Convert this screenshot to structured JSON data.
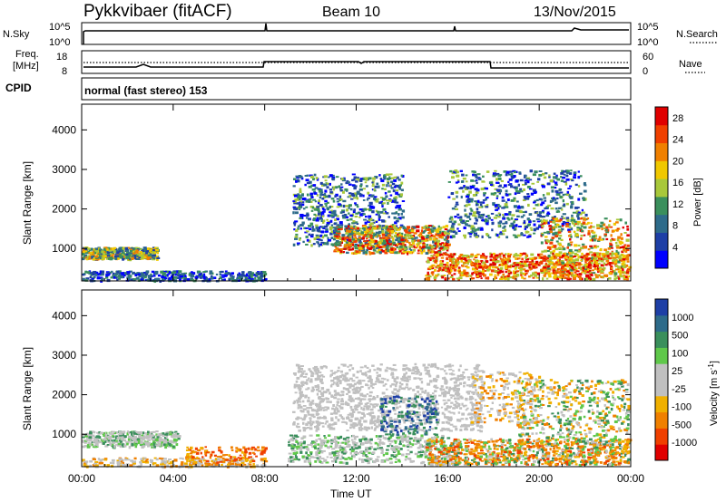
{
  "header": {
    "station": "Pykkvibaer (fitACF)",
    "beam": "Beam 10",
    "date": "13/Nov/2015"
  },
  "sky_panel": {
    "left_label": "N.Sky",
    "left_ticks": [
      "10^5",
      "10^0"
    ],
    "right_label": "N.Search",
    "right_ticks": [
      "10^5",
      "10^0"
    ]
  },
  "freq_panel": {
    "left_label_1": "Freq.",
    "left_label_2": "[MHz]",
    "left_ticks": [
      "18",
      "8"
    ],
    "right_label": "Nave",
    "right_ticks": [
      "60",
      "0"
    ]
  },
  "cpid": {
    "label": "CPID",
    "text": "normal (fast stereo) 153"
  },
  "colors": {
    "power": [
      "#0000ff",
      "#1e3fa6",
      "#2e6b8a",
      "#3a8f5c",
      "#a8c83a",
      "#f0c800",
      "#f08000",
      "#f04000",
      "#e00000"
    ],
    "velocity": [
      "#e00000",
      "#f04000",
      "#f08000",
      "#f0b000",
      "#c0c0c0",
      "#c0c0c0",
      "#5fc84a",
      "#3a8f5c",
      "#2e6b8a",
      "#1e3fa6"
    ]
  },
  "chart_data": [
    {
      "type": "heatmap",
      "xlabel": "Time UT",
      "ylabel": "Slant Range [km]",
      "x_ticks": [
        "00:00",
        "04:00",
        "08:00",
        "12:00",
        "16:00",
        "20:00",
        "00:00"
      ],
      "y_ticks": [
        "1000",
        "2000",
        "3000",
        "4000"
      ],
      "xlim": [
        0,
        24
      ],
      "ylim": [
        180,
        4650
      ],
      "colorbar": {
        "label": "Power [dB]",
        "ticks": [
          "4",
          "8",
          "12",
          "16",
          "20",
          "24",
          "28"
        ],
        "range": [
          0,
          30
        ]
      }
    },
    {
      "type": "heatmap",
      "xlabel": "Time UT",
      "ylabel": "Slant Range [km]",
      "x_ticks": [
        "00:00",
        "04:00",
        "08:00",
        "12:00",
        "16:00",
        "20:00",
        "00:00"
      ],
      "y_ticks": [
        "1000",
        "2000",
        "3000",
        "4000"
      ],
      "xlim": [
        0,
        24
      ],
      "ylim": [
        180,
        4650
      ],
      "colorbar": {
        "label": "Velocity [m s^-1]",
        "ticks": [
          "1000",
          "500",
          "100",
          "25",
          "-25",
          "-100",
          "-500",
          "-1000"
        ]
      }
    }
  ]
}
